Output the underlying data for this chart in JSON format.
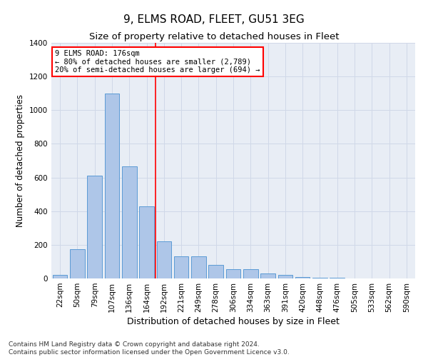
{
  "title": "9, ELMS ROAD, FLEET, GU51 3EG",
  "subtitle": "Size of property relative to detached houses in Fleet",
  "xlabel": "Distribution of detached houses by size in Fleet",
  "ylabel": "Number of detached properties",
  "categories": [
    "22sqm",
    "50sqm",
    "79sqm",
    "107sqm",
    "136sqm",
    "164sqm",
    "192sqm",
    "221sqm",
    "249sqm",
    "278sqm",
    "306sqm",
    "334sqm",
    "363sqm",
    "391sqm",
    "420sqm",
    "448sqm",
    "476sqm",
    "505sqm",
    "533sqm",
    "562sqm",
    "590sqm"
  ],
  "values": [
    20,
    175,
    610,
    1100,
    665,
    430,
    220,
    130,
    130,
    80,
    55,
    55,
    30,
    20,
    10,
    5,
    3,
    2,
    1,
    0,
    0
  ],
  "bar_color": "#aec6e8",
  "bar_edge_color": "#5b9bd5",
  "red_line_x": 5.5,
  "annotation_line1": "9 ELMS ROAD: 176sqm",
  "annotation_line2": "← 80% of detached houses are smaller (2,789)",
  "annotation_line3": "20% of semi-detached houses are larger (694) →",
  "annotation_box_color": "white",
  "annotation_box_edge_color": "red",
  "ylim": [
    0,
    1400
  ],
  "yticks": [
    0,
    200,
    400,
    600,
    800,
    1000,
    1200,
    1400
  ],
  "grid_color": "#d0d8e8",
  "background_color": "#e8edf5",
  "footer_text": "Contains HM Land Registry data © Crown copyright and database right 2024.\nContains public sector information licensed under the Open Government Licence v3.0.",
  "title_fontsize": 11,
  "subtitle_fontsize": 9.5,
  "xlabel_fontsize": 9,
  "ylabel_fontsize": 8.5,
  "tick_fontsize": 7.5,
  "annotation_fontsize": 7.5,
  "footer_fontsize": 6.5
}
